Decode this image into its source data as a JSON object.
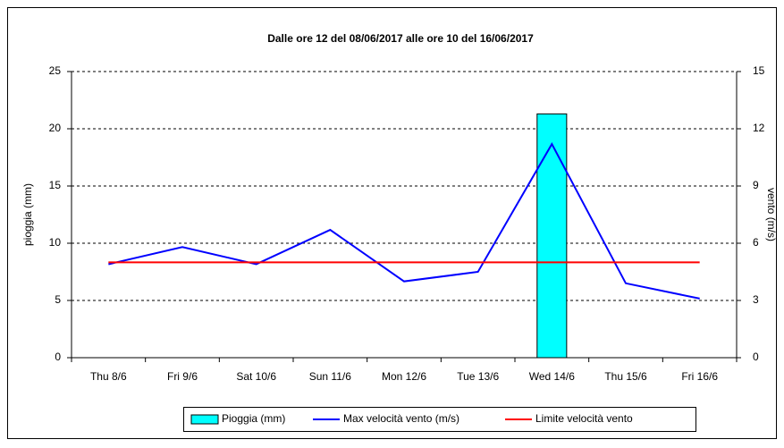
{
  "chart_data": {
    "type": "bar",
    "title": "Dalle ore 12 del 08/06/2017 alle ore 10 del 16/06/2017",
    "ylabel": "pioggia (mm)",
    "y2label": "vento (m/s)",
    "categories": [
      "Thu 8/6",
      "Fri 9/6",
      "Sat 10/6",
      "Sun 11/6",
      "Mon 12/6",
      "Tue 13/6",
      "Wed 14/6",
      "Thu 15/6",
      "Fri 16/6"
    ],
    "series": [
      {
        "name": "Pioggia (mm)",
        "type": "bar",
        "color": "#00ffff",
        "values": [
          0,
          0,
          0,
          0,
          0,
          0,
          21.3,
          0,
          0
        ]
      },
      {
        "name": "Max velocità vento (m/s)",
        "type": "line",
        "axis": "y2",
        "color": "#0000ff",
        "values": [
          4.9,
          5.8,
          4.9,
          6.7,
          4.0,
          4.5,
          11.2,
          3.9,
          3.1
        ]
      },
      {
        "name": "Limite velocità vento",
        "type": "line",
        "axis": "y2",
        "color": "#ff0000",
        "values": [
          5,
          5,
          5,
          5,
          5,
          5,
          5,
          5,
          5
        ]
      }
    ],
    "ylim": [
      0,
      25
    ],
    "yticks": [
      0,
      5,
      10,
      15,
      20,
      25
    ],
    "y2lim": [
      0,
      15
    ],
    "y2ticks": [
      0,
      3,
      6,
      9,
      12,
      15
    ],
    "grid": true,
    "legend": "bottom"
  }
}
